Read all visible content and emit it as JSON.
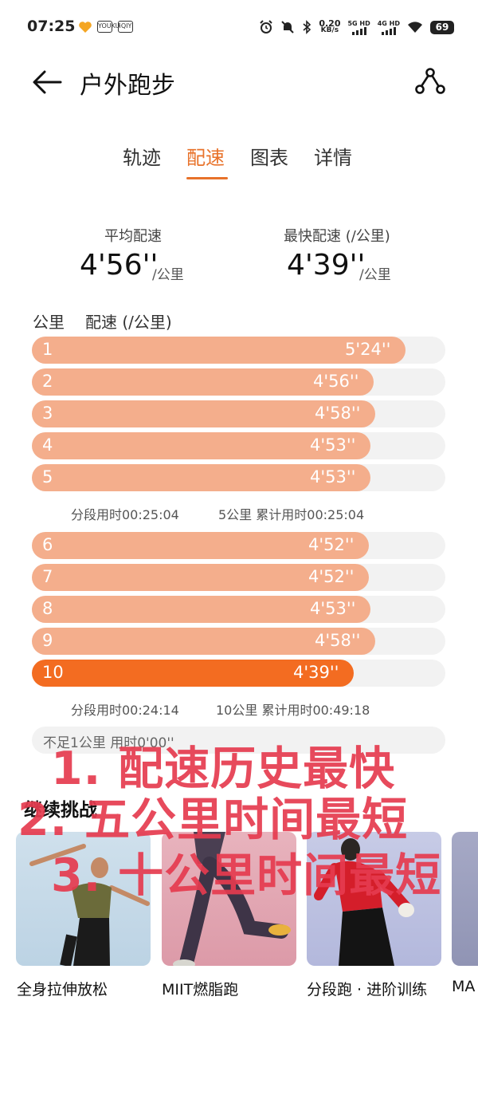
{
  "status_bar": {
    "time": "07:25",
    "net_speed_value": "0.20",
    "net_speed_unit": "KB/s",
    "sim1_label": "5G HD",
    "sim2_label": "4G HD",
    "battery": "69",
    "app_icon_2": "YOUKU",
    "app_icon_3": "iQIY"
  },
  "header": {
    "title": "户外跑步",
    "back_icon": "arrow-left-icon",
    "route_icon": "route-share-icon"
  },
  "tabs": [
    {
      "label": "轨迹",
      "active": false
    },
    {
      "label": "配速",
      "active": true
    },
    {
      "label": "图表",
      "active": false
    },
    {
      "label": "详情",
      "active": false
    }
  ],
  "summary": {
    "avg_label": "平均配速",
    "avg_value": "4'56''",
    "avg_unit": "/公里",
    "fast_label": "最快配速 (/公里)",
    "fast_value": "4'39''",
    "fast_unit": "/公里"
  },
  "table": {
    "col_km": "公里",
    "col_pace": "配速 (/公里)",
    "rows": [
      {
        "km": "1",
        "pace": "5'24''",
        "fill": 0.904,
        "fastest": false
      },
      {
        "km": "2",
        "pace": "4'56''",
        "fill": 0.826,
        "fastest": false
      },
      {
        "km": "3",
        "pace": "4'58''",
        "fill": 0.831,
        "fastest": false
      },
      {
        "km": "4",
        "pace": "4'53''",
        "fill": 0.818,
        "fastest": false
      },
      {
        "km": "5",
        "pace": "4'53''",
        "fill": 0.818,
        "fastest": false
      },
      {
        "km": "6",
        "pace": "4'52''",
        "fill": 0.815,
        "fastest": false
      },
      {
        "km": "7",
        "pace": "4'52''",
        "fill": 0.815,
        "fastest": false
      },
      {
        "km": "8",
        "pace": "4'53''",
        "fill": 0.818,
        "fastest": false
      },
      {
        "km": "9",
        "pace": "4'58''",
        "fill": 0.831,
        "fastest": false
      },
      {
        "km": "10",
        "pace": "4'39''",
        "fill": 0.778,
        "fastest": true
      }
    ],
    "splits": [
      {
        "segment": "分段用时00:25:04",
        "cumulative": "5公里 累计用时00:25:04"
      },
      {
        "segment": "分段用时00:24:14",
        "cumulative": "10公里 累计用时00:49:18"
      }
    ],
    "residual": "不足1公里 用时0'00''"
  },
  "challenge": {
    "title": "继续挑战",
    "cards": [
      {
        "label": "全身拉伸放松"
      },
      {
        "label": "MIIT燃脂跑"
      },
      {
        "label": "分段跑 · 进阶训练"
      },
      {
        "label": "MA"
      }
    ]
  },
  "overlay": {
    "line1": "1. 配速历史最快",
    "line2": "2. 五公里时间最短",
    "line3": "3. 十公里时间最短"
  },
  "colors": {
    "accent": "#e8722a",
    "bar": "#f4ae8c",
    "bar_fastest": "#f36c21",
    "track": "#f2f2f2",
    "overlay_red": "#e63b4f"
  }
}
